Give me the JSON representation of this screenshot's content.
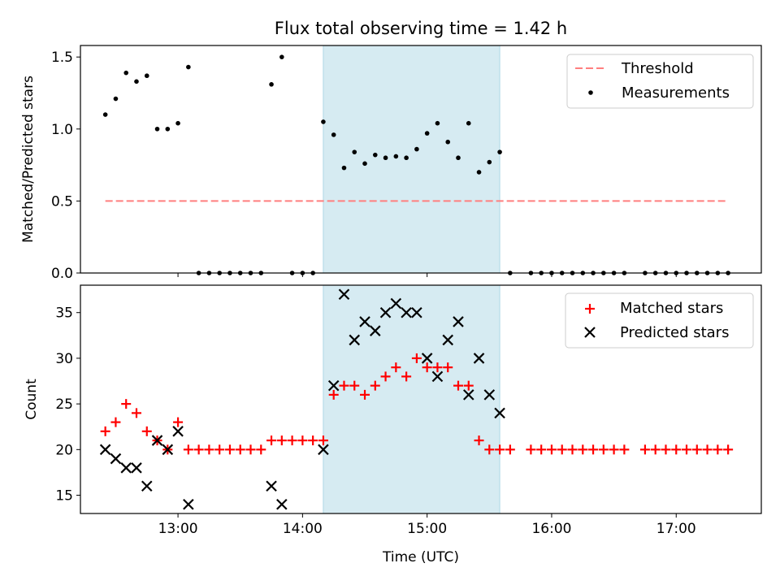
{
  "chart_data": [
    {
      "type": "scatter",
      "title": "Flux total observing time = 1.42 h",
      "xlabel": "",
      "ylabel": "Matched/Predicted stars",
      "xlim": [
        "12:13",
        "17:41"
      ],
      "ylim": [
        0,
        1.58
      ],
      "yticks": [
        0.0,
        0.5,
        1.0,
        1.5
      ],
      "ytick_labels": [
        "0.0",
        "0.5",
        "1.0",
        "1.5"
      ],
      "grid": false,
      "legend_position": "top-right",
      "shaded_interval": {
        "start": "14:10",
        "end": "15:35",
        "color": "#add8e6"
      },
      "threshold": {
        "name": "Threshold",
        "value": 0.5,
        "x_start": "12:25",
        "x_end": "17:25",
        "color": "#ff7f7f"
      },
      "series": [
        {
          "name": "Measurements",
          "color": "#000000",
          "points": [
            [
              "12:25",
              1.1
            ],
            [
              "12:30",
              1.21
            ],
            [
              "12:35",
              1.39
            ],
            [
              "12:40",
              1.33
            ],
            [
              "12:45",
              1.37
            ],
            [
              "12:50",
              1.0
            ],
            [
              "12:55",
              1.0
            ],
            [
              "13:00",
              1.04
            ],
            [
              "13:05",
              1.43
            ],
            [
              "13:10",
              0
            ],
            [
              "13:15",
              0
            ],
            [
              "13:20",
              0
            ],
            [
              "13:25",
              0
            ],
            [
              "13:30",
              0
            ],
            [
              "13:35",
              0
            ],
            [
              "13:40",
              0
            ],
            [
              "13:45",
              1.31
            ],
            [
              "13:50",
              1.5
            ],
            [
              "13:55",
              0
            ],
            [
              "14:00",
              0
            ],
            [
              "14:05",
              0
            ],
            [
              "14:10",
              1.05
            ],
            [
              "14:15",
              0.96
            ],
            [
              "14:20",
              0.73
            ],
            [
              "14:25",
              0.84
            ],
            [
              "14:30",
              0.76
            ],
            [
              "14:35",
              0.82
            ],
            [
              "14:40",
              0.8
            ],
            [
              "14:45",
              0.81
            ],
            [
              "14:50",
              0.8
            ],
            [
              "14:55",
              0.86
            ],
            [
              "15:00",
              0.97
            ],
            [
              "15:05",
              1.04
            ],
            [
              "15:10",
              0.91
            ],
            [
              "15:15",
              0.8
            ],
            [
              "15:20",
              1.04
            ],
            [
              "15:25",
              0.7
            ],
            [
              "15:30",
              0.77
            ],
            [
              "15:35",
              0.84
            ],
            [
              "15:40",
              0
            ],
            [
              "15:50",
              0
            ],
            [
              "15:55",
              0
            ],
            [
              "16:00",
              0
            ],
            [
              "16:05",
              0
            ],
            [
              "16:10",
              0
            ],
            [
              "16:15",
              0
            ],
            [
              "16:20",
              0
            ],
            [
              "16:25",
              0
            ],
            [
              "16:30",
              0
            ],
            [
              "16:35",
              0
            ],
            [
              "16:45",
              0
            ],
            [
              "16:50",
              0
            ],
            [
              "16:55",
              0
            ],
            [
              "17:00",
              0
            ],
            [
              "17:05",
              0
            ],
            [
              "17:10",
              0
            ],
            [
              "17:15",
              0
            ],
            [
              "17:20",
              0
            ],
            [
              "17:25",
              0
            ]
          ]
        }
      ]
    },
    {
      "type": "scatter",
      "title": "",
      "xlabel": "Time (UTC)",
      "ylabel": "Count",
      "xlim": [
        "12:13",
        "17:41"
      ],
      "ylim": [
        13,
        38
      ],
      "xticks": [
        "13:00",
        "14:00",
        "15:00",
        "16:00",
        "17:00"
      ],
      "yticks": [
        15,
        20,
        25,
        30,
        35
      ],
      "ytick_labels": [
        "15",
        "20",
        "25",
        "30",
        "35"
      ],
      "grid": false,
      "legend_position": "top-right",
      "shaded_interval": {
        "start": "14:10",
        "end": "15:35",
        "color": "#add8e6"
      },
      "series": [
        {
          "name": "Matched stars",
          "marker": "plus",
          "color": "#ff0000",
          "points": [
            [
              "12:25",
              22
            ],
            [
              "12:30",
              23
            ],
            [
              "12:35",
              25
            ],
            [
              "12:40",
              24
            ],
            [
              "12:45",
              22
            ],
            [
              "12:50",
              21
            ],
            [
              "12:55",
              20
            ],
            [
              "13:00",
              23
            ],
            [
              "13:05",
              20
            ],
            [
              "13:10",
              20
            ],
            [
              "13:15",
              20
            ],
            [
              "13:20",
              20
            ],
            [
              "13:25",
              20
            ],
            [
              "13:30",
              20
            ],
            [
              "13:35",
              20
            ],
            [
              "13:40",
              20
            ],
            [
              "13:45",
              21
            ],
            [
              "13:50",
              21
            ],
            [
              "13:55",
              21
            ],
            [
              "14:00",
              21
            ],
            [
              "14:05",
              21
            ],
            [
              "14:10",
              21
            ],
            [
              "14:15",
              26
            ],
            [
              "14:20",
              27
            ],
            [
              "14:25",
              27
            ],
            [
              "14:30",
              26
            ],
            [
              "14:35",
              27
            ],
            [
              "14:40",
              28
            ],
            [
              "14:45",
              29
            ],
            [
              "14:50",
              28
            ],
            [
              "14:55",
              30
            ],
            [
              "15:00",
              29
            ],
            [
              "15:05",
              29
            ],
            [
              "15:10",
              29
            ],
            [
              "15:15",
              27
            ],
            [
              "15:20",
              27
            ],
            [
              "15:25",
              21
            ],
            [
              "15:30",
              20
            ],
            [
              "15:35",
              20
            ],
            [
              "15:40",
              20
            ],
            [
              "15:50",
              20
            ],
            [
              "15:55",
              20
            ],
            [
              "16:00",
              20
            ],
            [
              "16:05",
              20
            ],
            [
              "16:10",
              20
            ],
            [
              "16:15",
              20
            ],
            [
              "16:20",
              20
            ],
            [
              "16:25",
              20
            ],
            [
              "16:30",
              20
            ],
            [
              "16:35",
              20
            ],
            [
              "16:45",
              20
            ],
            [
              "16:50",
              20
            ],
            [
              "16:55",
              20
            ],
            [
              "17:00",
              20
            ],
            [
              "17:05",
              20
            ],
            [
              "17:10",
              20
            ],
            [
              "17:15",
              20
            ],
            [
              "17:20",
              20
            ],
            [
              "17:25",
              20
            ]
          ]
        },
        {
          "name": "Predicted stars",
          "marker": "x",
          "color": "#000000",
          "points": [
            [
              "12:25",
              20
            ],
            [
              "12:30",
              19
            ],
            [
              "12:35",
              18
            ],
            [
              "12:40",
              18
            ],
            [
              "12:45",
              16
            ],
            [
              "12:50",
              21
            ],
            [
              "12:55",
              20
            ],
            [
              "13:00",
              22
            ],
            [
              "13:05",
              14
            ],
            [
              "13:45",
              16
            ],
            [
              "13:50",
              14
            ],
            [
              "14:10",
              20
            ],
            [
              "14:15",
              27
            ],
            [
              "14:20",
              37
            ],
            [
              "14:25",
              32
            ],
            [
              "14:30",
              34
            ],
            [
              "14:35",
              33
            ],
            [
              "14:40",
              35
            ],
            [
              "14:45",
              36
            ],
            [
              "14:50",
              35
            ],
            [
              "14:55",
              35
            ],
            [
              "15:00",
              30
            ],
            [
              "15:05",
              28
            ],
            [
              "15:10",
              32
            ],
            [
              "15:15",
              34
            ],
            [
              "15:20",
              26
            ],
            [
              "15:25",
              30
            ],
            [
              "15:30",
              26
            ],
            [
              "15:35",
              24
            ]
          ]
        }
      ]
    }
  ]
}
